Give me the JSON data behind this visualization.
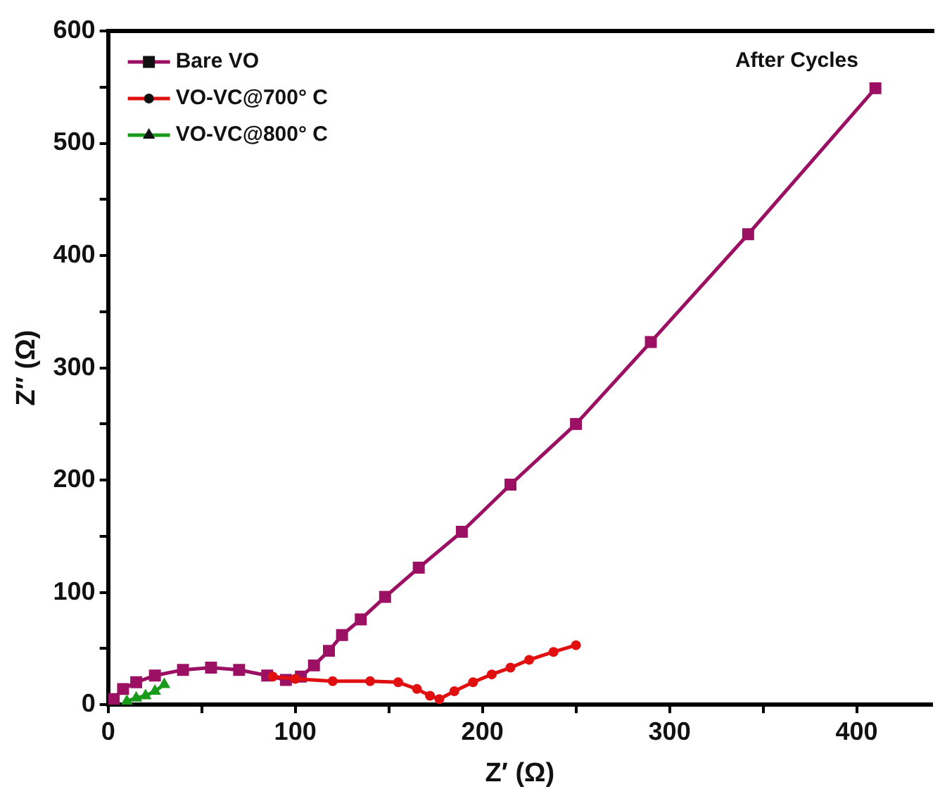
{
  "chart_data": {
    "type": "line",
    "xlabel": "Z′ (Ω)",
    "ylabel": "Z″ (Ω)",
    "annotations": [
      "After Cycles"
    ],
    "xlim": [
      0,
      440
    ],
    "ylim": [
      0,
      600
    ],
    "xticks": [
      0,
      {
        "value": 50,
        "label": null
      },
      100,
      {
        "value": 150,
        "label": null
      },
      200,
      {
        "value": 250,
        "label": null
      },
      300,
      {
        "value": 350,
        "label": null
      },
      400
    ],
    "yticks": [
      0,
      {
        "value": 50,
        "label": null
      },
      100,
      {
        "value": 150,
        "label": null
      },
      200,
      {
        "value": 250,
        "label": null
      },
      300,
      {
        "value": 350,
        "label": null
      },
      400,
      {
        "value": 450,
        "label": null
      },
      500,
      {
        "value": 550,
        "label": null
      },
      600
    ],
    "grid": false,
    "legend": "top left",
    "line_style": "solid",
    "series": [
      {
        "name": "Bare VO",
        "color": "#9c1063",
        "marker": "square",
        "x": [
          3,
          8,
          15,
          25,
          40,
          55,
          70,
          85,
          95,
          103,
          110,
          118,
          125,
          135,
          148,
          166,
          189,
          215,
          250,
          290,
          342,
          410
        ],
        "values": [
          5,
          14,
          20,
          26,
          31,
          33,
          31,
          26,
          22,
          25,
          35,
          48,
          62,
          76,
          96,
          122,
          154,
          196,
          250,
          323,
          419,
          549
        ]
      },
      {
        "name": "VO-VC@700° C",
        "color": "#e01010",
        "marker": "circle",
        "x": [
          88,
          100,
          120,
          140,
          155,
          165,
          172,
          177,
          185,
          195,
          205,
          215,
          225,
          238,
          250
        ],
        "values": [
          25,
          23,
          21,
          21,
          20,
          14,
          8,
          5,
          12,
          20,
          27,
          33,
          40,
          47,
          53
        ]
      },
      {
        "name": "VO-VC@800° C",
        "color": "#1a9a1a",
        "marker": "triangle",
        "x": [
          10,
          15,
          20,
          25,
          30
        ],
        "values": [
          3,
          6,
          8,
          12,
          18
        ]
      }
    ]
  }
}
